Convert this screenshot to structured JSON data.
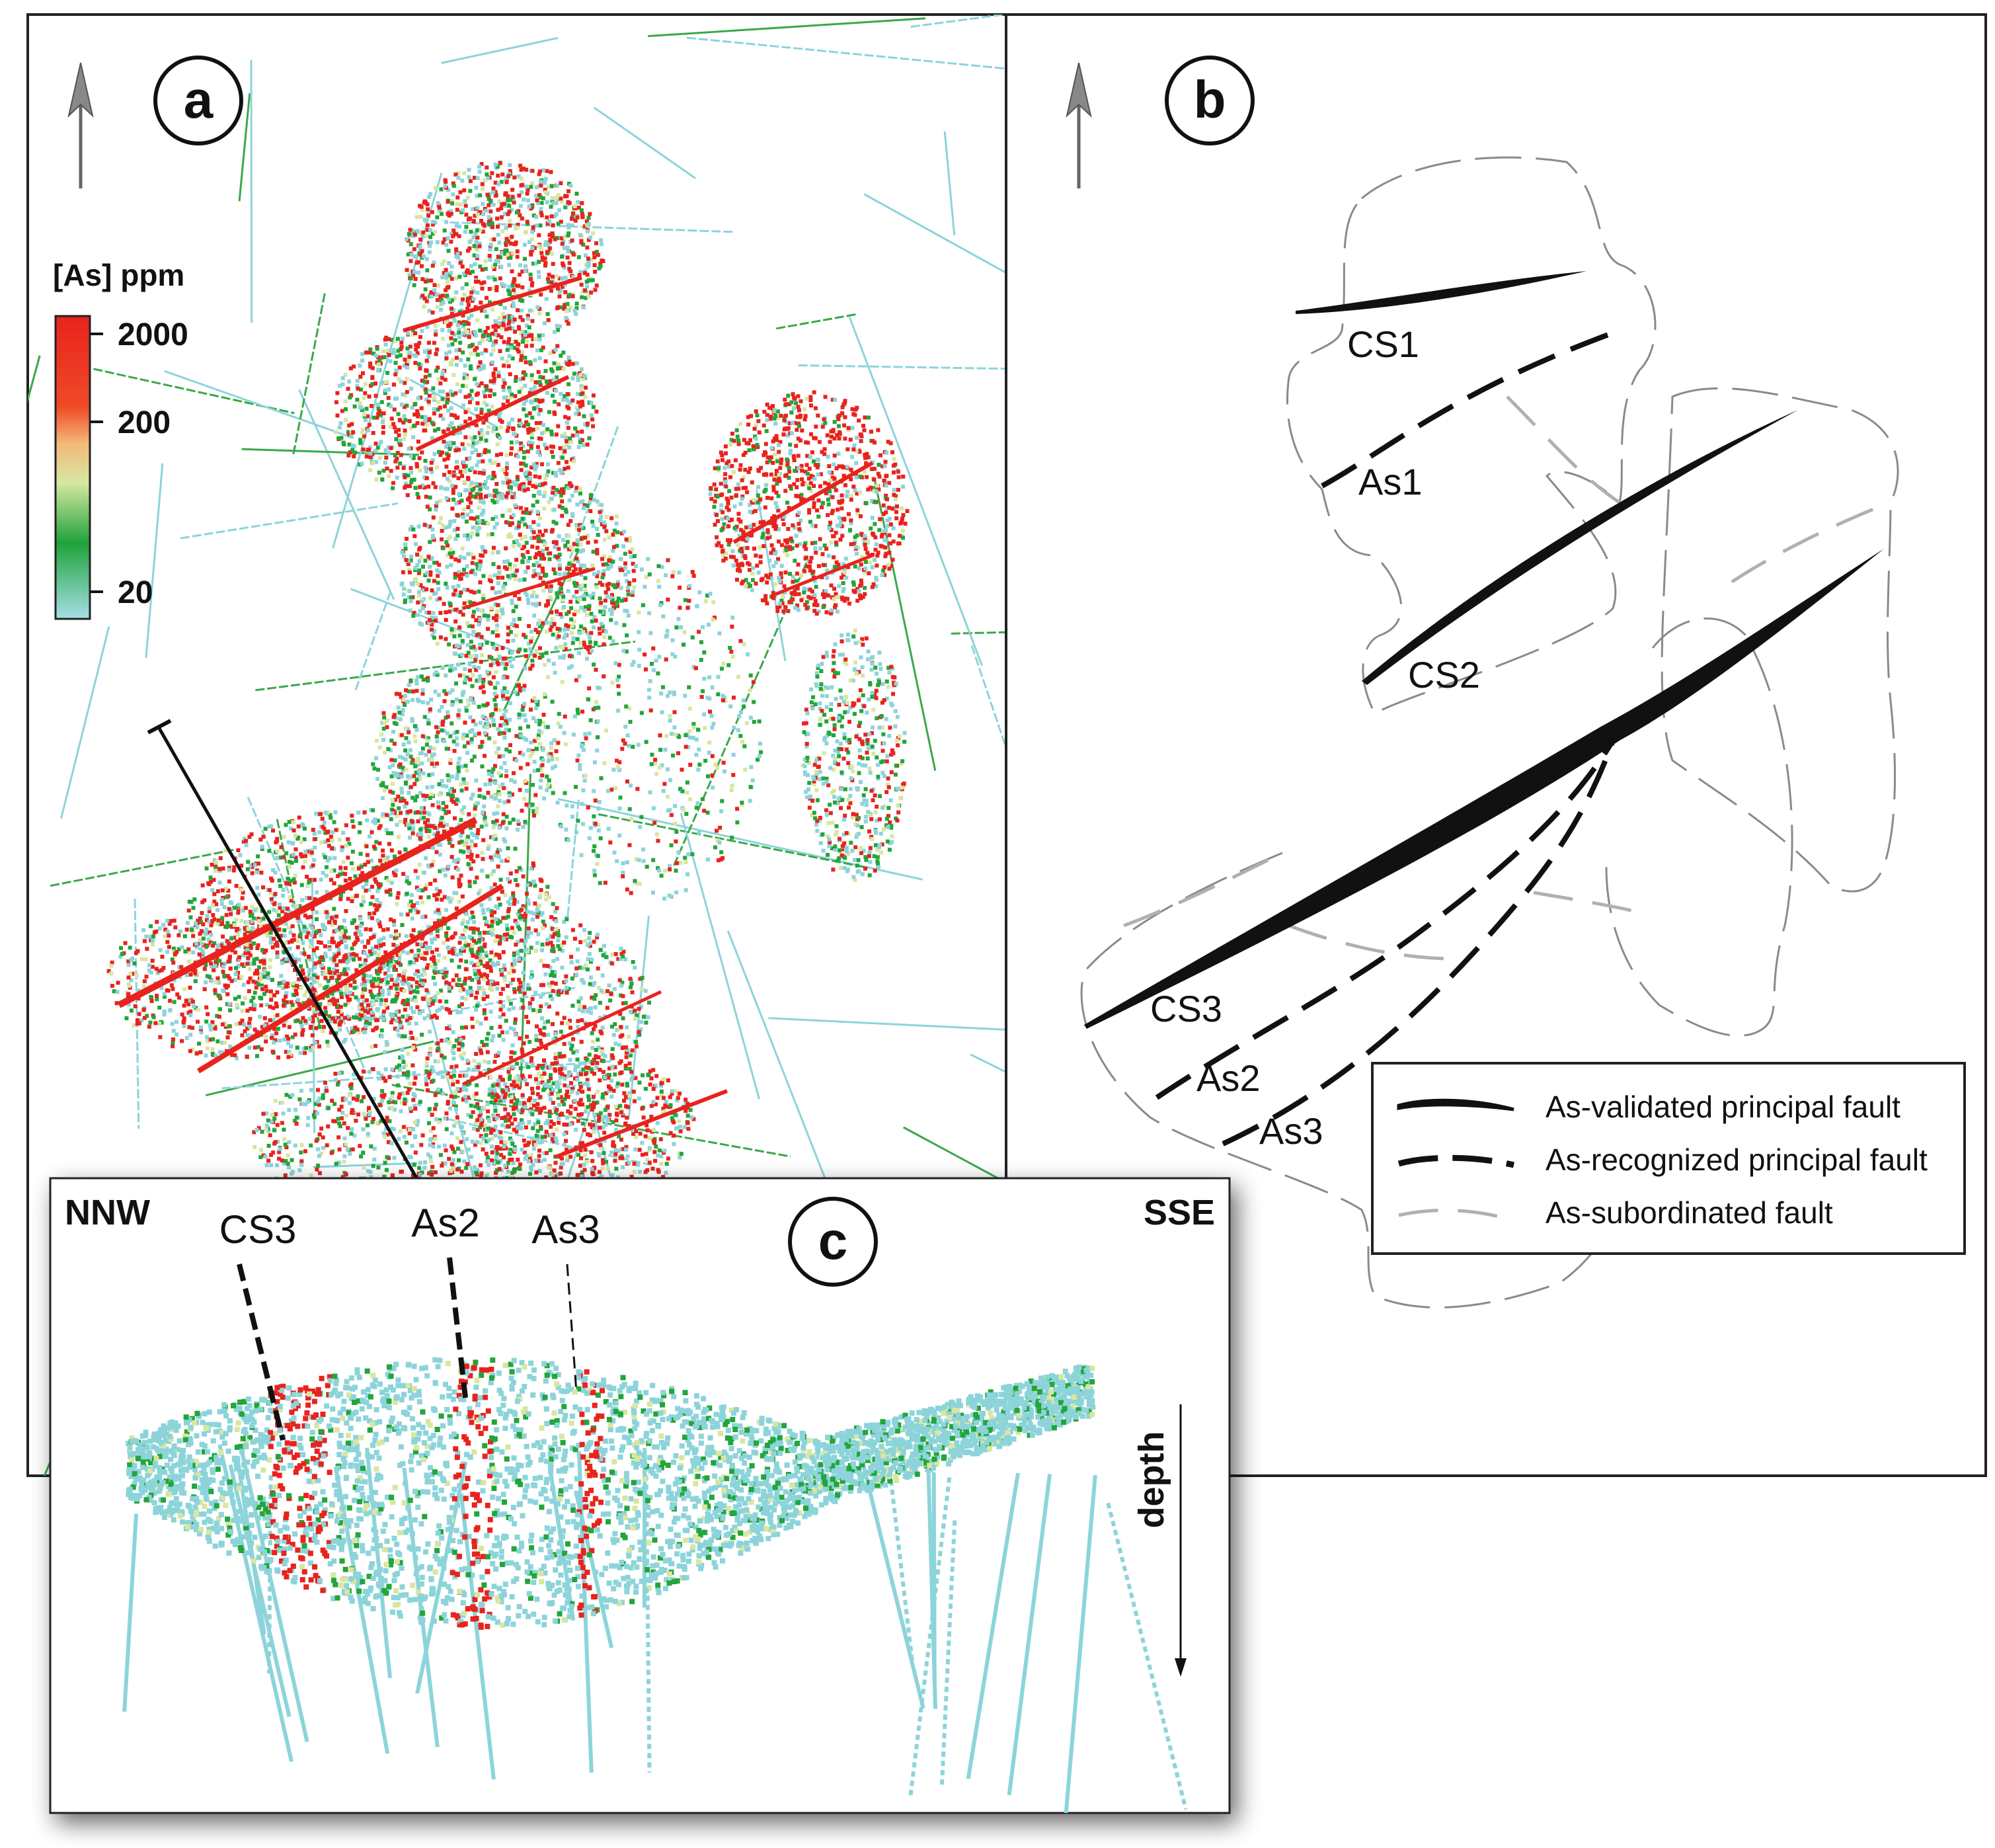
{
  "panel_a": {
    "label": "a",
    "legend_title": "[As] ppm",
    "ticks": [
      "2000",
      "200",
      "20"
    ]
  },
  "panel_b": {
    "label": "b",
    "faults": {
      "cs1": "CS1",
      "cs2": "CS2",
      "cs3": "CS3",
      "as1": "As1",
      "as2": "As2",
      "as3": "As3"
    },
    "legend": [
      "As-validated principal fault",
      "As-recognized principal fault",
      "As-subordinated fault"
    ]
  },
  "panel_c": {
    "label": "c",
    "left_direction": "NNW",
    "right_direction": "SSE",
    "fault_labels": [
      "CS3",
      "As2",
      "As3"
    ],
    "depth_label": "depth"
  },
  "colors": {
    "high": "#e8231d",
    "mid": "#eeda98",
    "low": "#22a53a",
    "background": "#8cd4da"
  }
}
